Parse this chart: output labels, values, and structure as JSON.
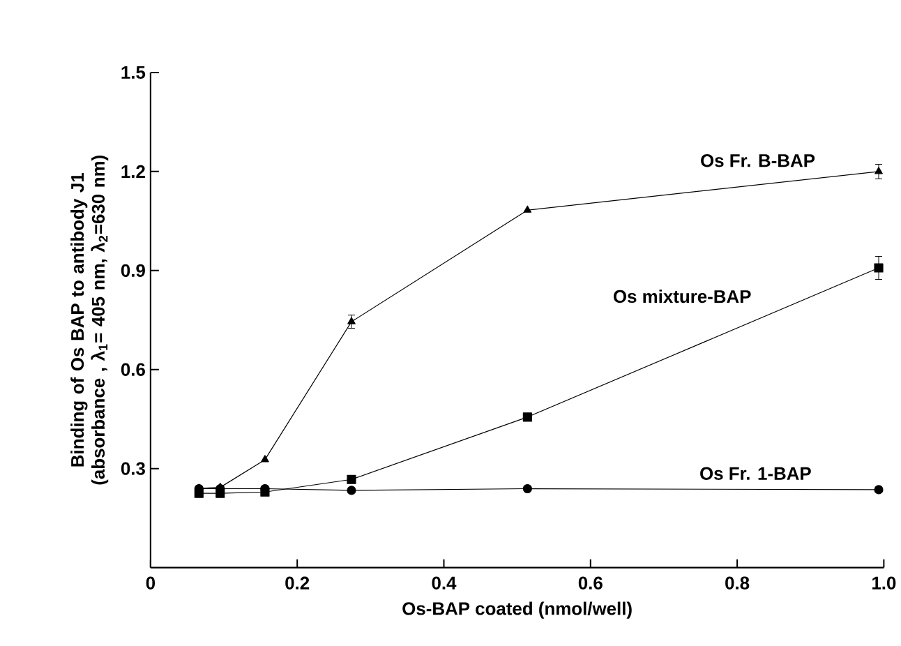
{
  "chart_data": {
    "type": "line",
    "xlabel": "Os-BAP coated (nmol/well)",
    "ylabel": "Binding of Os BAP to antibody J1 (absorbance , λ$_{1}$= 405 nm, λ$_{2}$=630 nm)",
    "x": [
      0.066,
      0.095,
      0.156,
      0.274,
      0.514,
      0.993
    ],
    "xlim": [
      0,
      1.0
    ],
    "xticks": [
      0,
      0.2,
      0.4,
      0.6,
      0.8,
      {
        "value": 1.0,
        "label": "1.0"
      }
    ],
    "ylim": [
      0,
      1.5
    ],
    "yticks": [
      0.3,
      0.6,
      0.9,
      1.2,
      1.5
    ],
    "grid": false,
    "line_style": "solid",
    "series": [
      {
        "name": "Os Fr. B-BAP",
        "color": "#000000",
        "marker": "triangle",
        "values": [
          0.24,
          0.243,
          0.327,
          0.745,
          1.083,
          1.2
        ],
        "errors": [
          null,
          null,
          null,
          0.02,
          null,
          0.022
        ]
      },
      {
        "name": "Os mixture-BAP",
        "color": "#000000",
        "marker": "square",
        "values": [
          0.225,
          0.225,
          0.229,
          0.267,
          0.456,
          0.908
        ],
        "errors": [
          null,
          null,
          null,
          null,
          null,
          0.035
        ]
      },
      {
        "name": "Os Fr. 1-BAP",
        "color": "#000000",
        "marker": "circle",
        "values": [
          0.239,
          0.239,
          0.239,
          0.234,
          0.239,
          0.236
        ]
      }
    ]
  }
}
